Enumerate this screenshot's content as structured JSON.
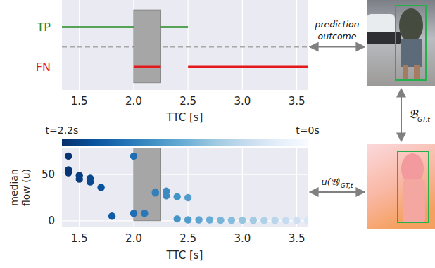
{
  "chart_data": [
    {
      "type": "segments",
      "categories": [
        "TP",
        "FN"
      ],
      "series": [
        {
          "name": "TP",
          "color": "#228b22",
          "segments": [
            [
              1.34,
              2.0
            ],
            [
              2.25,
              2.5
            ]
          ]
        },
        {
          "name": "FN",
          "color": "#e31a1c",
          "segments": [
            [
              2.0,
              2.25
            ],
            [
              2.5,
              3.6
            ]
          ]
        }
      ],
      "highlight": [
        2.0,
        2.25
      ],
      "xlim": [
        1.34,
        3.6
      ],
      "xticks": [
        1.5,
        {
          "value": 2,
          "label": "2.0"
        },
        2.5,
        {
          "value": 3,
          "label": "3.0"
        },
        3.5
      ],
      "x_label": "TTC [s]",
      "grid": true,
      "annotation": "prediction outcome"
    },
    {
      "type": "scatter",
      "x": [
        1.4,
        1.4,
        1.4,
        1.5,
        1.5,
        1.6,
        1.6,
        1.7,
        1.8,
        2.0,
        2.0,
        2.1,
        2.2,
        2.2,
        2.3,
        2.3,
        2.4,
        2.4,
        2.5,
        2.5,
        2.6,
        2.7,
        2.8,
        2.9,
        3.0,
        3.1,
        3.2,
        3.3,
        3.4,
        3.5,
        3.6
      ],
      "values": [
        70,
        55,
        52,
        49,
        45,
        46,
        42,
        36,
        5,
        70,
        8,
        8,
        31,
        30,
        32,
        27,
        26,
        2,
        25,
        1,
        1,
        1,
        0.5,
        0.5,
        0.5,
        0.5,
        0.3,
        0.3,
        0.3,
        0.3,
        0.3
      ],
      "highlight": [
        2.0,
        2.25
      ],
      "xlim": [
        1.34,
        3.6
      ],
      "ylim": [
        -7,
        79
      ],
      "xticks": [
        1.5,
        {
          "value": 2,
          "label": "2.0"
        },
        2.5,
        {
          "value": 3,
          "label": "3.0"
        },
        3.5
      ],
      "yticks": [
        0,
        50
      ],
      "x_label": "TTC [s]",
      "y_label": "median flow (u)",
      "grid": true,
      "colorbar": {
        "range": [
          2.2,
          0
        ],
        "ticks": [
          {
            "value": 2.2,
            "label": "t=2.2s"
          },
          {
            "value": 0,
            "label": "t=0s"
          }
        ]
      },
      "annotation": {
        "text": "u(𝔅)",
        "subscript": "GT,t"
      }
    }
  ],
  "link_label": {
    "text": "𝔅",
    "subscript": "GT,t"
  }
}
